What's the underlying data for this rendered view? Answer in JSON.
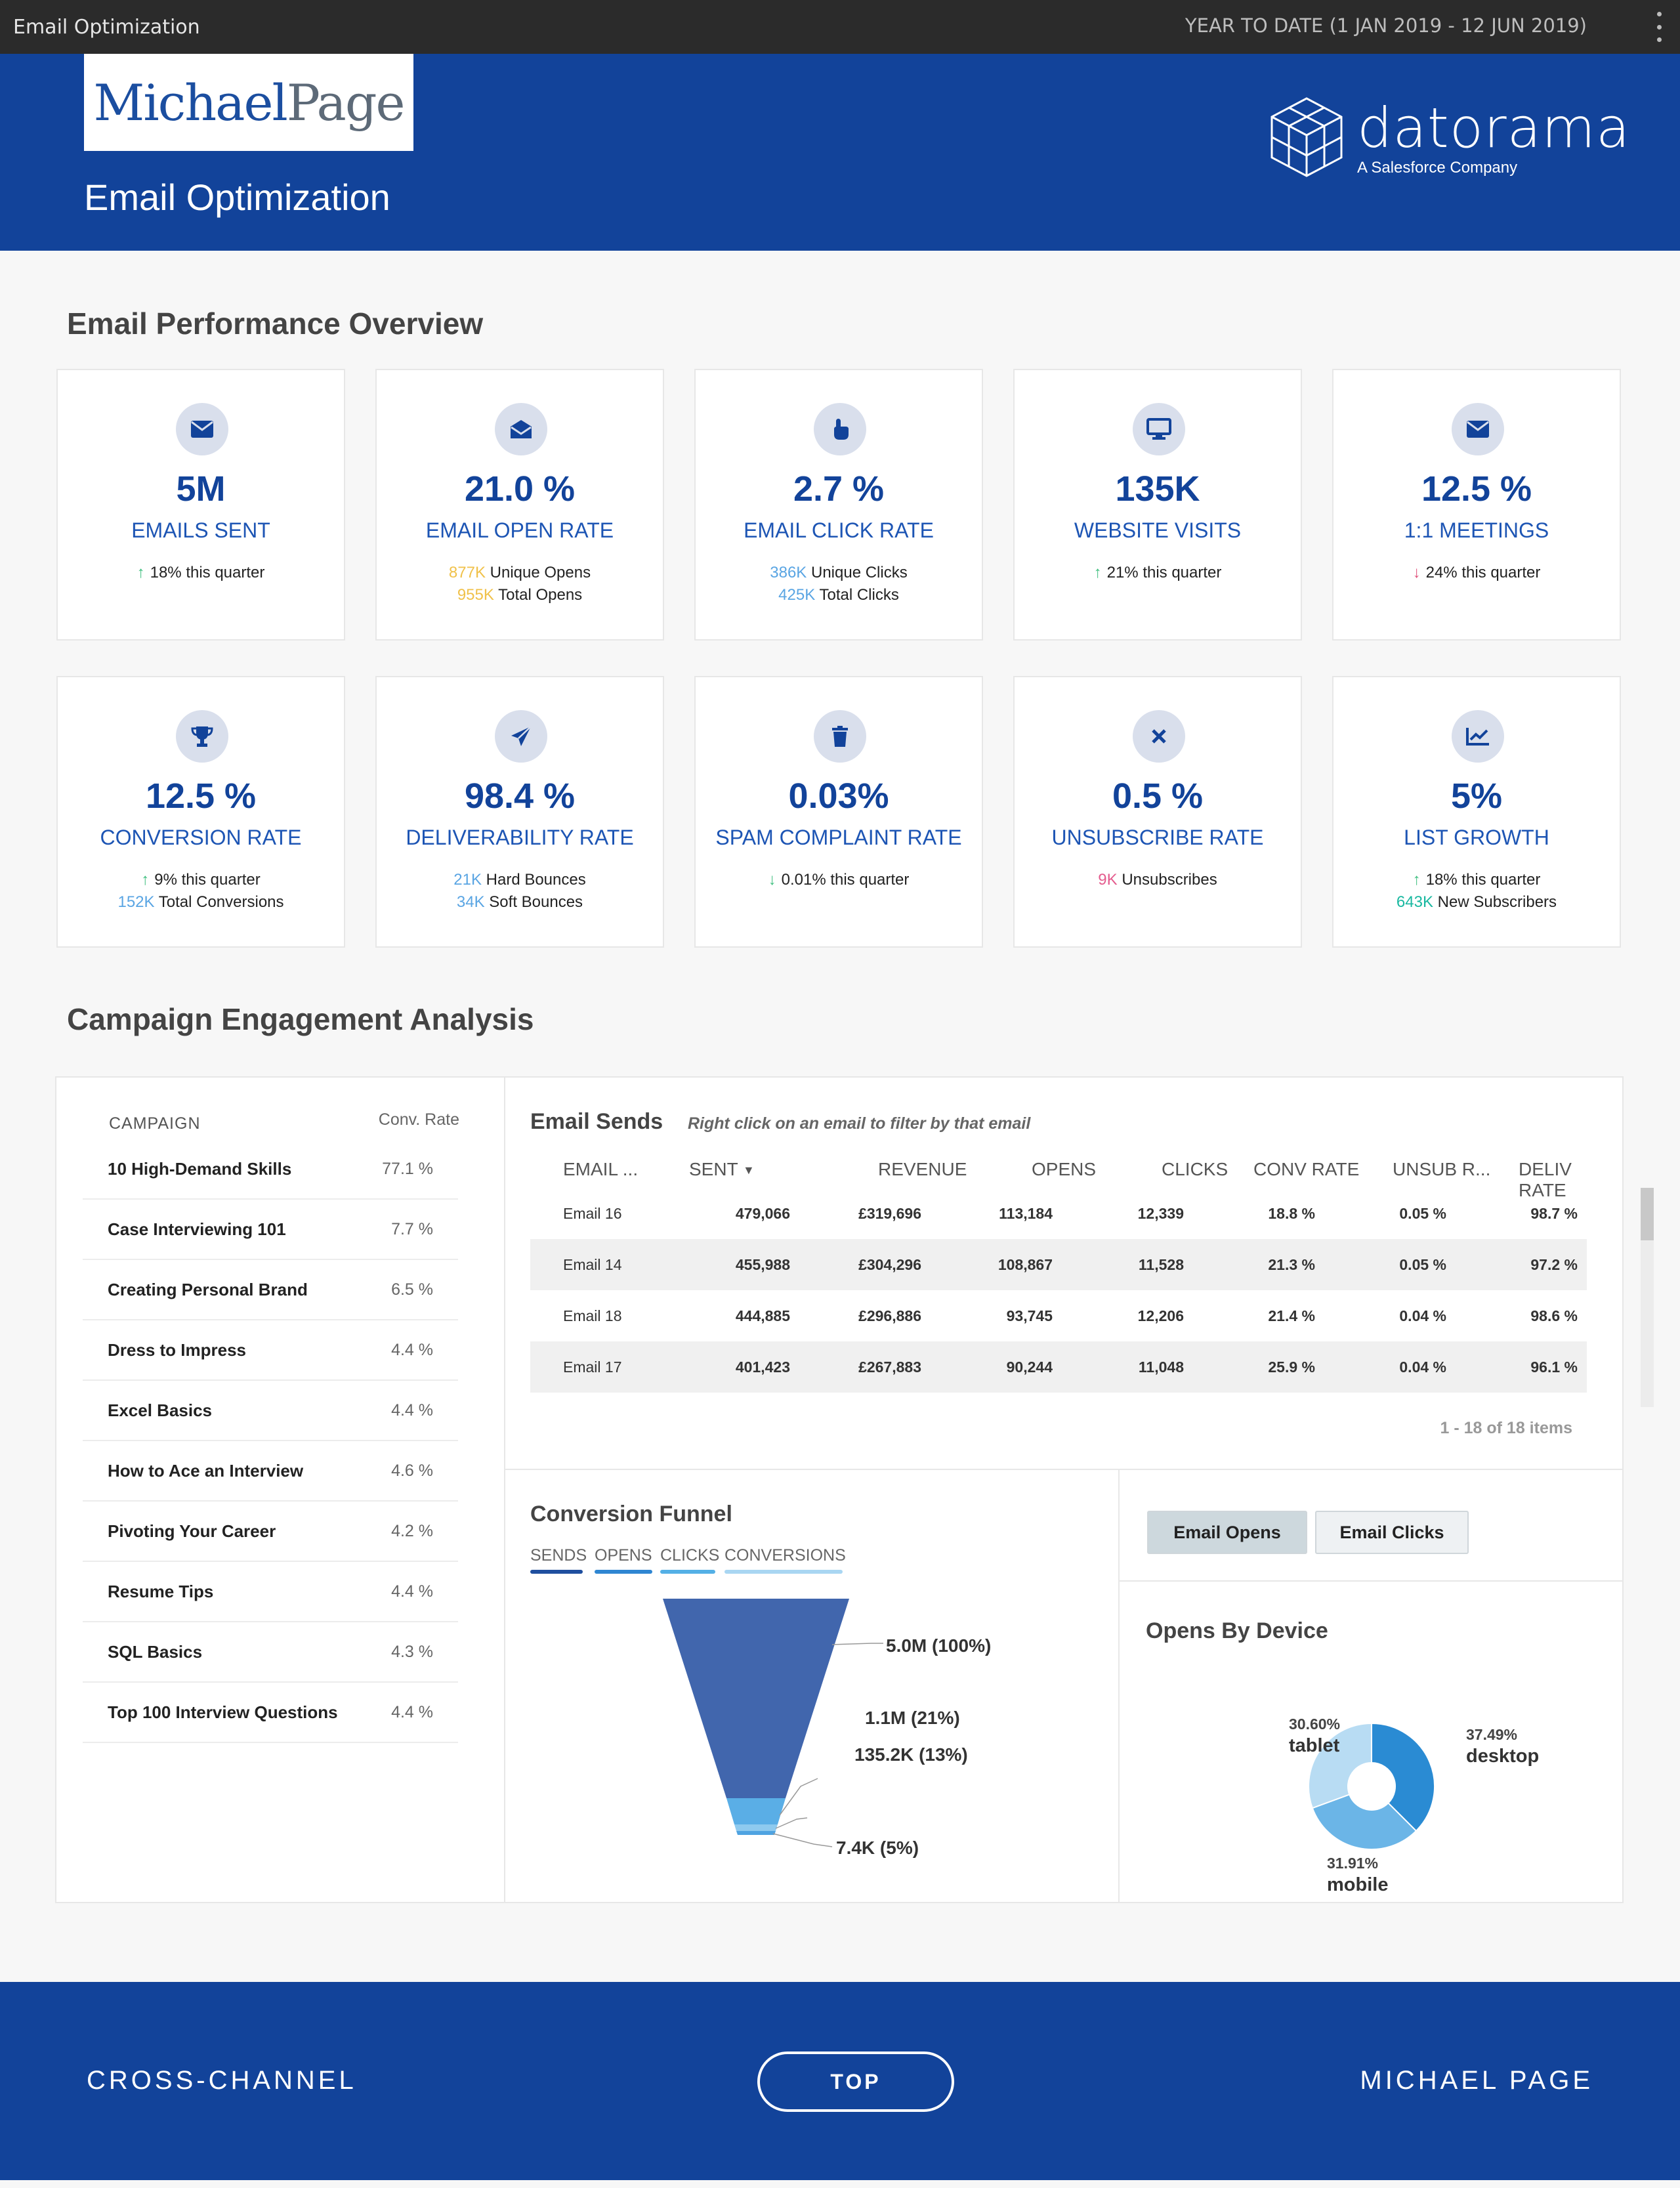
{
  "topbar": {
    "title": "Email Optimization",
    "date_range": "YEAR TO DATE (1 JAN 2019 - 12 JUN 2019)"
  },
  "header": {
    "logo_part1": "Michael",
    "logo_part2": "Page",
    "page_title": "Email Optimization",
    "brand": "datorama",
    "brand_tagline": "A Salesforce Company"
  },
  "sections": {
    "overview_title": "Email Performance Overview",
    "engagement_title": "Campaign Engagement Analysis"
  },
  "kpis": [
    {
      "icon": "envelope-icon",
      "value": "5M",
      "label": "EMAILS SENT",
      "line1_arrow": "up",
      "line1_text": "18% this quarter"
    },
    {
      "icon": "envelope-open-icon",
      "value": "21.0 %",
      "label": "EMAIL OPEN RATE",
      "line1_num": "877K",
      "line1_text": "Unique Opens",
      "line2_num": "955K",
      "line2_text": "Total Opens"
    },
    {
      "icon": "pointer-hand-icon",
      "value": "2.7 %",
      "label": "EMAIL CLICK RATE",
      "line1_num": "386K",
      "line1_text": "Unique Clicks",
      "line2_num": "425K",
      "line2_text": "Total Clicks"
    },
    {
      "icon": "monitor-icon",
      "value": "135K",
      "label": "WEBSITE VISITS",
      "line1_arrow": "up",
      "line1_text": "21% this quarter"
    },
    {
      "icon": "envelope-icon",
      "value": "12.5 %",
      "label": "1:1 MEETINGS",
      "line1_arrow": "down",
      "line1_text": "24% this quarter"
    },
    {
      "icon": "trophy-icon",
      "value": "12.5 %",
      "label": "CONVERSION RATE",
      "line1_arrow": "up",
      "line1_text": "9% this quarter",
      "line2_num": "152K",
      "line2_text": "Total Conversions"
    },
    {
      "icon": "paper-plane-icon",
      "value": "98.4 %",
      "label": "DELIVERABILITY RATE",
      "line1_num": "21K",
      "line1_text": "Hard Bounces",
      "line2_num": "34K",
      "line2_text": "Soft Bounces"
    },
    {
      "icon": "trash-icon",
      "value": "0.03%",
      "label": "SPAM COMPLAINT RATE",
      "line1_arrow": "down",
      "line1_text": "0.01% this quarter"
    },
    {
      "icon": "close-x-icon",
      "value": "0.5 %",
      "label": "UNSUBSCRIBE RATE",
      "line1_num": "9K",
      "line1_text": "Unsubscribes"
    },
    {
      "icon": "line-chart-icon",
      "value": "5%",
      "label": "LIST GROWTH",
      "line1_arrow": "up",
      "line1_text": "18% this quarter",
      "line2_num": "643K",
      "line2_text": "New Subscribers"
    }
  ],
  "campaigns": {
    "header_name": "CAMPAIGN",
    "header_rate": "Conv. Rate",
    "rows": [
      {
        "name": "10 High-Demand Skills",
        "rate": "77.1 %"
      },
      {
        "name": "Case Interviewing 101",
        "rate": "7.7 %"
      },
      {
        "name": "Creating Personal Brand",
        "rate": "6.5 %"
      },
      {
        "name": "Dress to Impress",
        "rate": "4.4 %"
      },
      {
        "name": "Excel Basics",
        "rate": "4.4 %"
      },
      {
        "name": "How to Ace an Interview",
        "rate": "4.6 %"
      },
      {
        "name": "Pivoting Your Career",
        "rate": "4.2 %"
      },
      {
        "name": "Resume Tips",
        "rate": "4.4 %"
      },
      {
        "name": "SQL Basics",
        "rate": "4.3 %"
      },
      {
        "name": "Top 100 Interview Questions",
        "rate": "4.4 %"
      }
    ]
  },
  "email_sends": {
    "title": "Email Sends",
    "hint": "Right click on an email to filter by that email",
    "columns": [
      "EMAIL ...",
      "SENT",
      "REVENUE",
      "OPENS",
      "CLICKS",
      "CONV RATE",
      "UNSUB R...",
      "DELIV RATE"
    ],
    "rows": [
      [
        "Email 16",
        "479,066",
        "£319,696",
        "113,184",
        "12,339",
        "18.8 %",
        "0.05 %",
        "98.7 %"
      ],
      [
        "Email 14",
        "455,988",
        "£304,296",
        "108,867",
        "11,528",
        "21.3 %",
        "0.05 %",
        "97.2 %"
      ],
      [
        "Email 18",
        "444,885",
        "£296,886",
        "93,745",
        "12,206",
        "21.4 %",
        "0.04 %",
        "98.6 %"
      ],
      [
        "Email 17",
        "401,423",
        "£267,883",
        "90,244",
        "11,048",
        "25.9 %",
        "0.04 %",
        "96.1 %"
      ]
    ],
    "pager": "1 - 18 of 18 items"
  },
  "funnel": {
    "title": "Conversion Funnel",
    "legend": [
      {
        "label": "SENDS",
        "color": "#1f4f9f"
      },
      {
        "label": "OPENS",
        "color": "#2f86d2"
      },
      {
        "label": "CLICKS",
        "color": "#54b0e6"
      },
      {
        "label": "CONVERSIONS",
        "color": "#a9d6f2"
      }
    ],
    "labels": [
      "5.0M (100%)",
      "1.1M (21%)",
      "135.2K (13%)",
      "7.4K (5%)"
    ]
  },
  "device": {
    "toggle_opens": "Email Opens",
    "toggle_clicks": "Email Clicks",
    "title": "Opens By Device"
  },
  "chart_data": {
    "type": "pie",
    "categories": [
      "desktop",
      "mobile",
      "tablet"
    ],
    "values": [
      37.49,
      31.91,
      30.6
    ],
    "labels": [
      "37.49%",
      "31.91%",
      "30.60%"
    ],
    "colors": [
      "#2a8bd3",
      "#6bb5e7",
      "#b8dcf3"
    ]
  },
  "footer": {
    "left": "CROSS-CHANNEL",
    "button": "TOP",
    "right": "MICHAEL PAGE"
  }
}
